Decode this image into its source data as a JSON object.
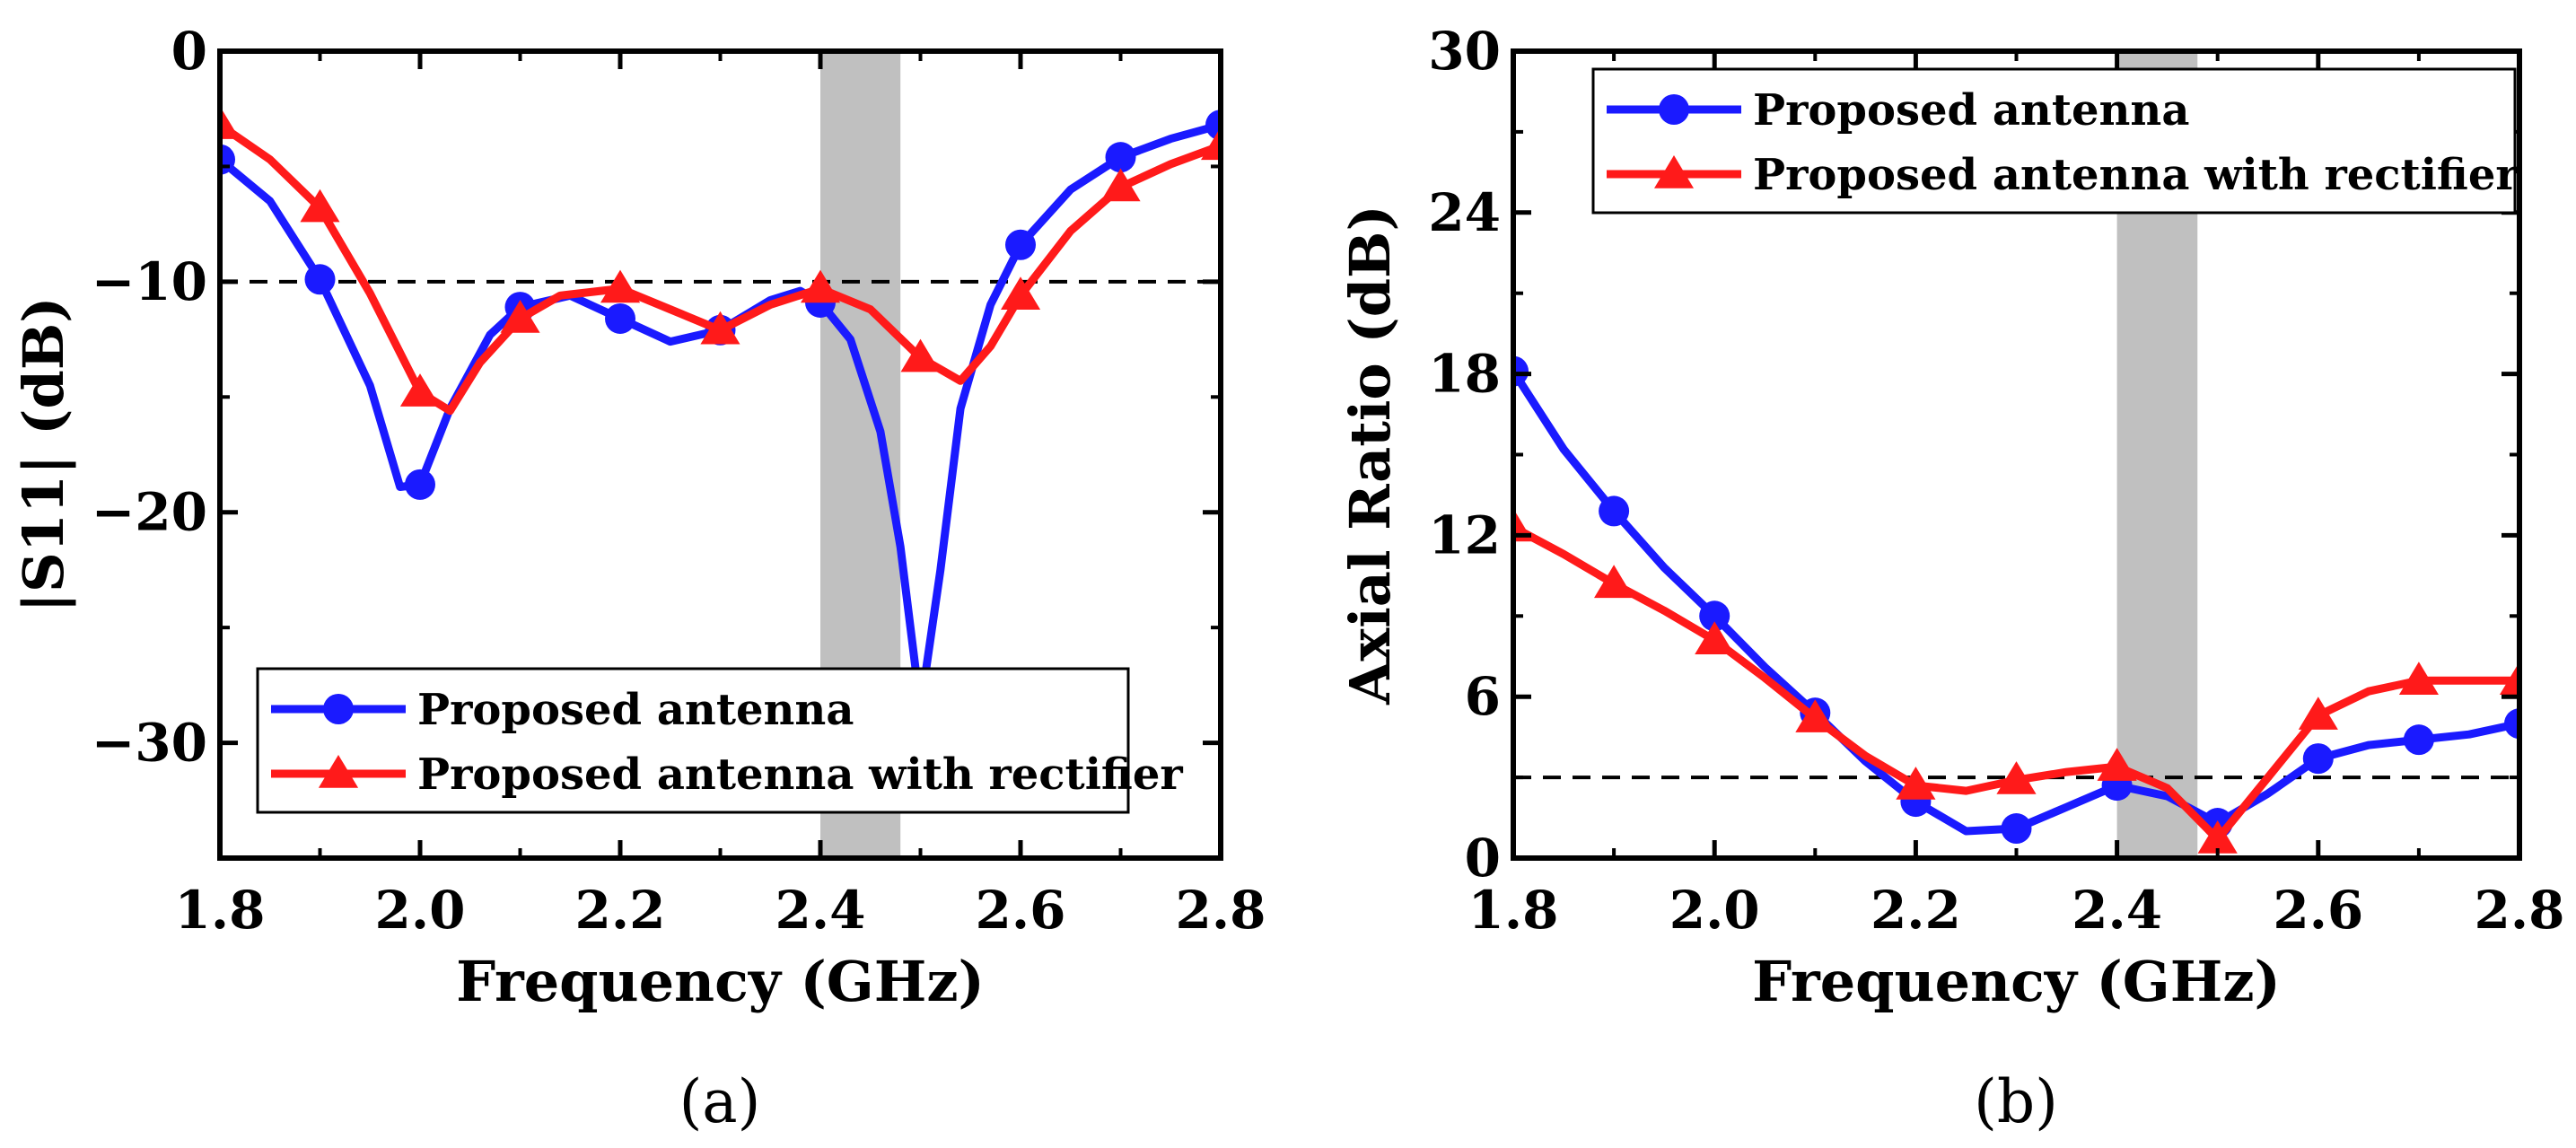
{
  "chart_data": [
    {
      "type": "line",
      "panel_label": "(a)",
      "xlabel": "Frequency (GHz)",
      "ylabel": "|S11| (dB)",
      "xlim": [
        1.8,
        2.8
      ],
      "ylim": [
        -35,
        0
      ],
      "xticks": [
        1.8,
        2.0,
        2.2,
        2.4,
        2.6,
        2.8
      ],
      "xtick_labels": [
        "1.8",
        "2.0",
        "2.2",
        "2.4",
        "2.6",
        "2.8"
      ],
      "yticks": [
        0,
        -10,
        -20,
        -30
      ],
      "ytick_labels": [
        "0",
        "−10",
        "−20",
        "−30"
      ],
      "reference_line": {
        "y": -10,
        "style": "dashed"
      },
      "shaded_band": {
        "x": [
          2.4,
          2.48
        ],
        "color": "#c0c0c0"
      },
      "legend_position": "bottom-right",
      "series": [
        {
          "name": "Proposed antenna",
          "color": "#1a1aff",
          "marker": "circle",
          "x": [
            1.8,
            1.9,
            2.0,
            2.1,
            2.2,
            2.3,
            2.4,
            2.5,
            2.6,
            2.7,
            2.8
          ],
          "y": [
            -4.7,
            -9.9,
            -18.8,
            -11.1,
            -11.6,
            -12.1,
            -10.9,
            -28.5,
            -8.4,
            -4.6,
            -3.2
          ],
          "curve": [
            [
              1.8,
              -4.7
            ],
            [
              1.85,
              -6.5
            ],
            [
              1.9,
              -9.9
            ],
            [
              1.95,
              -14.5
            ],
            [
              1.98,
              -18.9
            ],
            [
              2.0,
              -18.8
            ],
            [
              2.03,
              -15.5
            ],
            [
              2.07,
              -12.3
            ],
            [
              2.1,
              -11.1
            ],
            [
              2.15,
              -10.6
            ],
            [
              2.2,
              -11.6
            ],
            [
              2.25,
              -12.6
            ],
            [
              2.3,
              -12.1
            ],
            [
              2.35,
              -10.8
            ],
            [
              2.38,
              -10.4
            ],
            [
              2.4,
              -10.9
            ],
            [
              2.43,
              -12.5
            ],
            [
              2.46,
              -16.5
            ],
            [
              2.48,
              -21.5
            ],
            [
              2.5,
              -28.5
            ],
            [
              2.52,
              -22.5
            ],
            [
              2.54,
              -15.5
            ],
            [
              2.57,
              -11.0
            ],
            [
              2.6,
              -8.4
            ],
            [
              2.65,
              -6.0
            ],
            [
              2.7,
              -4.6
            ],
            [
              2.75,
              -3.8
            ],
            [
              2.8,
              -3.2
            ]
          ]
        },
        {
          "name": "Proposed antenna with rectifier",
          "color": "#ff1a1a",
          "marker": "triangle",
          "x": [
            1.8,
            1.9,
            2.0,
            2.1,
            2.2,
            2.3,
            2.4,
            2.5,
            2.6,
            2.7,
            2.8
          ],
          "y": [
            -3.2,
            -6.8,
            -14.8,
            -11.6,
            -10.3,
            -12.1,
            -10.3,
            -13.3,
            -10.6,
            -5.9,
            -4.1
          ],
          "curve": [
            [
              1.8,
              -3.2
            ],
            [
              1.85,
              -4.7
            ],
            [
              1.9,
              -6.8
            ],
            [
              1.95,
              -10.5
            ],
            [
              2.0,
              -14.8
            ],
            [
              2.03,
              -15.6
            ],
            [
              2.06,
              -13.5
            ],
            [
              2.1,
              -11.6
            ],
            [
              2.14,
              -10.6
            ],
            [
              2.2,
              -10.3
            ],
            [
              2.25,
              -11.2
            ],
            [
              2.3,
              -12.1
            ],
            [
              2.35,
              -11.0
            ],
            [
              2.4,
              -10.3
            ],
            [
              2.45,
              -11.2
            ],
            [
              2.5,
              -13.3
            ],
            [
              2.54,
              -14.3
            ],
            [
              2.57,
              -12.8
            ],
            [
              2.6,
              -10.6
            ],
            [
              2.65,
              -7.8
            ],
            [
              2.7,
              -5.9
            ],
            [
              2.75,
              -4.9
            ],
            [
              2.8,
              -4.1
            ]
          ]
        }
      ]
    },
    {
      "type": "line",
      "panel_label": "(b)",
      "xlabel": "Frequency (GHz)",
      "ylabel": "Axial Ratio (dB)",
      "xlim": [
        1.8,
        2.8
      ],
      "ylim": [
        0,
        30
      ],
      "xticks": [
        1.8,
        2.0,
        2.2,
        2.4,
        2.6,
        2.8
      ],
      "xtick_labels": [
        "1.8",
        "2.0",
        "2.2",
        "2.4",
        "2.6",
        "2.8"
      ],
      "yticks": [
        0,
        6,
        12,
        18,
        24,
        30
      ],
      "ytick_labels": [
        "0",
        "6",
        "12",
        "18",
        "24",
        "30"
      ],
      "reference_line": {
        "y": 3,
        "style": "dashed"
      },
      "shaded_band": {
        "x": [
          2.4,
          2.48
        ],
        "color": "#c0c0c0"
      },
      "legend_position": "top-right",
      "series": [
        {
          "name": "Proposed antenna",
          "color": "#1a1aff",
          "marker": "circle",
          "x": [
            1.8,
            1.9,
            2.0,
            2.1,
            2.2,
            2.3,
            2.4,
            2.5,
            2.6,
            2.7,
            2.8
          ],
          "y": [
            18.1,
            12.9,
            9.0,
            5.4,
            2.1,
            1.1,
            2.7,
            1.3,
            3.7,
            4.4,
            5.0
          ],
          "curve": [
            [
              1.8,
              18.1
            ],
            [
              1.85,
              15.2
            ],
            [
              1.9,
              12.9
            ],
            [
              1.95,
              10.8
            ],
            [
              2.0,
              9.0
            ],
            [
              2.05,
              7.1
            ],
            [
              2.1,
              5.4
            ],
            [
              2.15,
              3.6
            ],
            [
              2.2,
              2.1
            ],
            [
              2.25,
              1.0
            ],
            [
              2.3,
              1.1
            ],
            [
              2.35,
              1.9
            ],
            [
              2.4,
              2.7
            ],
            [
              2.45,
              2.3
            ],
            [
              2.5,
              1.3
            ],
            [
              2.55,
              2.4
            ],
            [
              2.6,
              3.7
            ],
            [
              2.65,
              4.2
            ],
            [
              2.7,
              4.4
            ],
            [
              2.75,
              4.6
            ],
            [
              2.8,
              5.0
            ]
          ]
        },
        {
          "name": "Proposed antenna with rectifier",
          "color": "#ff1a1a",
          "marker": "triangle",
          "x": [
            1.8,
            1.9,
            2.0,
            2.1,
            2.2,
            2.3,
            2.4,
            2.5,
            2.6,
            2.7,
            2.8
          ],
          "y": [
            12.3,
            10.2,
            8.1,
            5.2,
            2.7,
            2.9,
            3.4,
            0.7,
            5.3,
            6.6,
            6.6
          ],
          "curve": [
            [
              1.8,
              12.3
            ],
            [
              1.85,
              11.3
            ],
            [
              1.9,
              10.2
            ],
            [
              1.95,
              9.2
            ],
            [
              2.0,
              8.1
            ],
            [
              2.05,
              6.7
            ],
            [
              2.1,
              5.2
            ],
            [
              2.15,
              3.8
            ],
            [
              2.2,
              2.7
            ],
            [
              2.25,
              2.5
            ],
            [
              2.3,
              2.9
            ],
            [
              2.35,
              3.2
            ],
            [
              2.4,
              3.4
            ],
            [
              2.45,
              2.6
            ],
            [
              2.5,
              0.7
            ],
            [
              2.55,
              3.0
            ],
            [
              2.6,
              5.3
            ],
            [
              2.65,
              6.2
            ],
            [
              2.7,
              6.6
            ],
            [
              2.75,
              6.6
            ],
            [
              2.8,
              6.6
            ]
          ]
        }
      ]
    }
  ]
}
